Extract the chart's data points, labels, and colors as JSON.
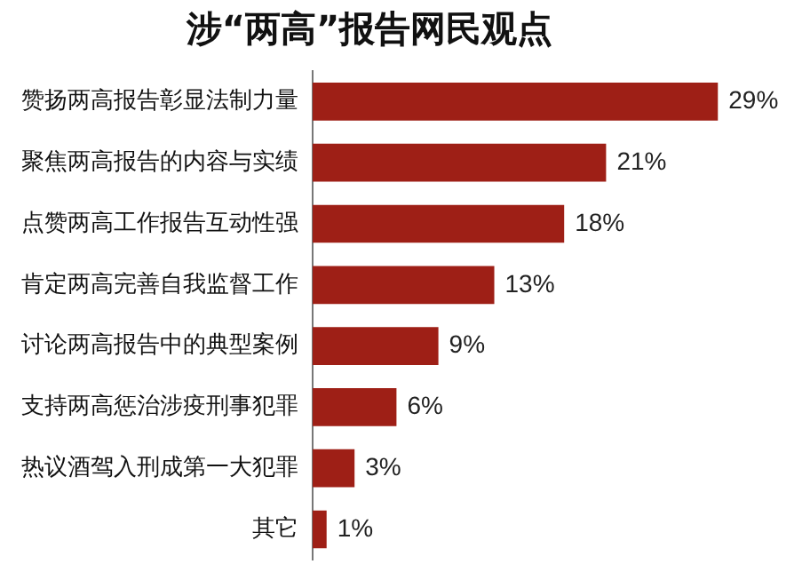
{
  "chart_data": {
    "type": "bar",
    "orientation": "horizontal",
    "title": "涉“两高”报告网民观点",
    "categories": [
      "赞扬两高报告彰显法制力量",
      "聚焦两高报告的内容与实绩",
      "点赞两高工作报告互动性强",
      "肯定两高完善自我监督工作",
      "讨论两高报告中的典型案例",
      "支持两高惩治涉疫刑事犯罪",
      "热议酒驾入刑成第一大犯罪",
      "其它"
    ],
    "values": [
      29,
      21,
      18,
      13,
      9,
      6,
      3,
      1
    ],
    "value_labels": [
      "29%",
      "21%",
      "18%",
      "13%",
      "9%",
      "6%",
      "3%",
      "1%"
    ],
    "color": "#9e1f16",
    "grid": false,
    "legend": false,
    "tick_labels": "y"
  }
}
